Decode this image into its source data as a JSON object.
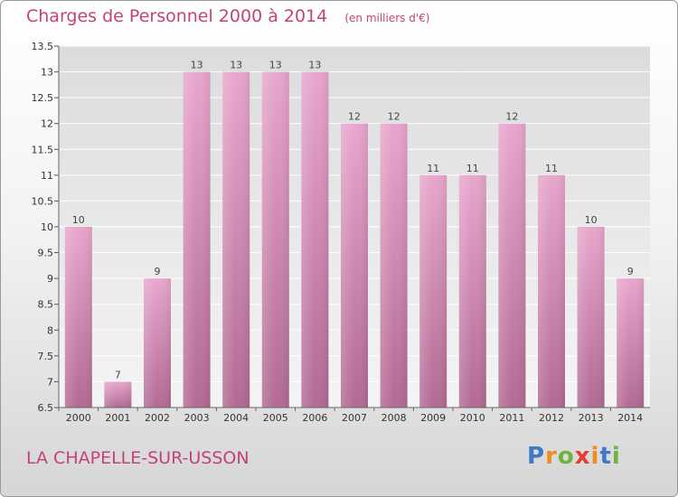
{
  "header": {
    "title": "Charges de Personnel 2000 à 2014",
    "unit": "(en milliers d'€)"
  },
  "footer": {
    "commune": "LA CHAPELLE-SUR-USSON",
    "logo_text": "Proxiti"
  },
  "colors": {
    "title": "#c4417a",
    "bar_top": "#e8a6cc",
    "bar_bottom": "#b26a93",
    "logo_letters": [
      "#3f79c7",
      "#f08b1e",
      "#6cb33f",
      "#e63d2f",
      "#f08b1e",
      "#3f79c7",
      "#6cb33f"
    ]
  },
  "chart_data": {
    "type": "bar",
    "title": "Charges de Personnel 2000 à 2014",
    "subtitle": "(en milliers d'€)",
    "categories": [
      "2000",
      "2001",
      "2002",
      "2003",
      "2004",
      "2005",
      "2006",
      "2007",
      "2008",
      "2009",
      "2010",
      "2011",
      "2012",
      "2013",
      "2014"
    ],
    "values": [
      10,
      7,
      9,
      13,
      13,
      13,
      13,
      12,
      12,
      11,
      11,
      12,
      11,
      10,
      9
    ],
    "data_labels": [
      "10",
      "7",
      "9",
      "13",
      "13",
      "13",
      "13",
      "12",
      "12",
      "11",
      "11",
      "12",
      "11",
      "10",
      "9"
    ],
    "ylim": [
      6.5,
      13.5
    ],
    "yticks": [
      6.5,
      7,
      7.5,
      8,
      8.5,
      9,
      9.5,
      10,
      10.5,
      11,
      11.5,
      12,
      12.5,
      13,
      13.5
    ],
    "ytick_labels": [
      "6.5",
      "7",
      "7.5",
      "8",
      "8.5",
      "9",
      "9.5",
      "10",
      "10.5",
      "11",
      "11.5",
      "12",
      "12.5",
      "13",
      "13.5"
    ],
    "grid": true,
    "legend": "none"
  }
}
